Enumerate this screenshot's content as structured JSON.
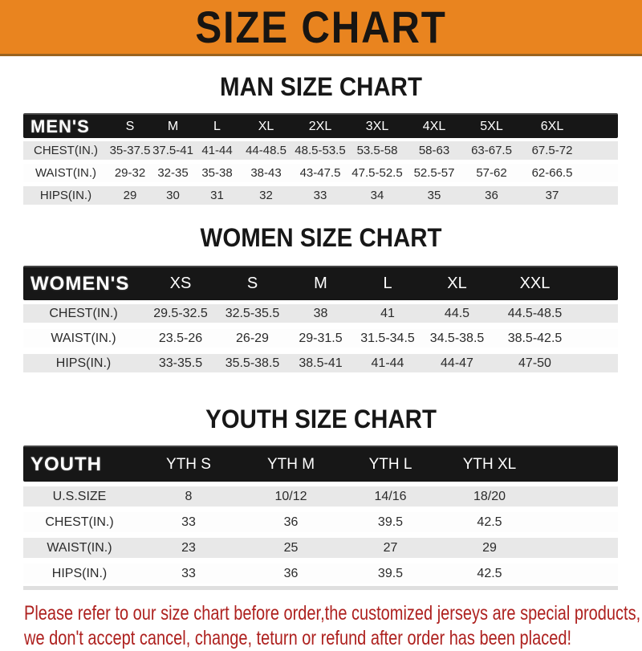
{
  "banner": {
    "title": "SIZE CHART"
  },
  "sections": [
    {
      "heading": "MAN SIZE CHART",
      "table": {
        "corner": "MEN'S",
        "columns": [
          "S",
          "M",
          "L",
          "XL",
          "2XL",
          "3XL",
          "4XL",
          "5XL",
          "6XL"
        ],
        "rows": [
          {
            "label": "CHEST(IN.)",
            "values": [
              "35-37.5",
              "37.5-41",
              "41-44",
              "44-48.5",
              "48.5-53.5",
              "53.5-58",
              "58-63",
              "63-67.5",
              "67.5-72"
            ]
          },
          {
            "label": "WAIST(IN.)",
            "values": [
              "29-32",
              "32-35",
              "35-38",
              "38-43",
              "43-47.5",
              "47.5-52.5",
              "52.5-57",
              "57-62",
              "62-66.5"
            ]
          },
          {
            "label": "HIPS(IN.)",
            "values": [
              "29",
              "30",
              "31",
              "32",
              "33",
              "34",
              "35",
              "36",
              "37"
            ]
          }
        ]
      }
    },
    {
      "heading": "WOMEN SIZE CHART",
      "table": {
        "corner": "WOMEN'S",
        "columns": [
          "XS",
          "S",
          "M",
          "L",
          "XL",
          "XXL"
        ],
        "rows": [
          {
            "label": "CHEST(IN.)",
            "values": [
              "29.5-32.5",
              "32.5-35.5",
              "38",
              "41",
              "44.5",
              "44.5-48.5"
            ]
          },
          {
            "label": "WAIST(IN.)",
            "values": [
              "23.5-26",
              "26-29",
              "29-31.5",
              "31.5-34.5",
              "34.5-38.5",
              "38.5-42.5"
            ]
          },
          {
            "label": "HIPS(IN.)",
            "values": [
              "33-35.5",
              "35.5-38.5",
              "38.5-41",
              "41-44",
              "44-47",
              "47-50"
            ]
          }
        ]
      }
    },
    {
      "heading": "YOUTH SIZE CHART",
      "table": {
        "corner": "YOUTH",
        "columns": [
          "YTH S",
          "YTH M",
          "YTH L",
          "YTH XL"
        ],
        "rows": [
          {
            "label": "U.S.SIZE",
            "values": [
              "8",
              "10/12",
              "14/16",
              "18/20"
            ]
          },
          {
            "label": "CHEST(IN.)",
            "values": [
              "33",
              "36",
              "39.5",
              "42.5"
            ]
          },
          {
            "label": "WAIST(IN.)",
            "values": [
              "23",
              "25",
              "27",
              "29"
            ]
          },
          {
            "label": "HIPS(IN.)",
            "values": [
              "33",
              "36",
              "39.5",
              "42.5"
            ]
          }
        ]
      }
    }
  ],
  "footer": {
    "line1": "Please refer to our size chart before order,the customized jerseys are special products,",
    "line2": "we don't accept cancel, change, teturn or refund after order has been placed!"
  },
  "colors": {
    "banner_bg": "#E9841F",
    "header_bar": "#171717",
    "row_alt": "#E8E8E8",
    "footer_text": "#AE211F"
  }
}
